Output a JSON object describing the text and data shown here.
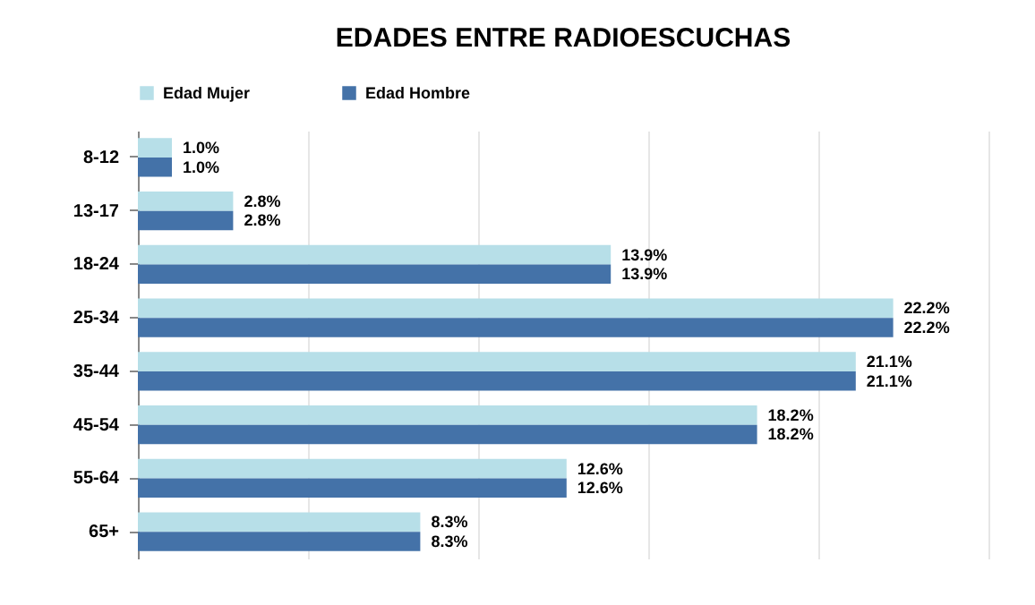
{
  "chart_data": {
    "type": "bar",
    "orientation": "horizontal",
    "title": "EDADES ENTRE RADIOESCUCHAS",
    "categories": [
      "8-12",
      "13-17",
      "18-24",
      "25-34",
      "35-44",
      "45-54",
      "55-64",
      "65+"
    ],
    "series": [
      {
        "name": "Edad Mujer",
        "color": "#b7dfe8",
        "values": [
          1.0,
          2.8,
          13.9,
          22.2,
          21.1,
          18.2,
          12.6,
          8.3
        ],
        "value_labels": [
          "1.0%",
          "2.8%",
          "13.9%",
          "22.2%",
          "21.1%",
          "18.2%",
          "12.6%",
          "8.3%"
        ]
      },
      {
        "name": "Edad Hombre",
        "color": "#4472a8",
        "values": [
          1.0,
          2.8,
          13.9,
          22.2,
          21.1,
          18.2,
          12.6,
          8.3
        ],
        "value_labels": [
          "1.0%",
          "2.8%",
          "13.9%",
          "22.2%",
          "21.1%",
          "18.2%",
          "12.6%",
          "8.3%"
        ]
      }
    ],
    "xlim": [
      0,
      25
    ],
    "xticks": [
      {
        "value": 0,
        "label": null
      },
      {
        "value": 5,
        "label": null
      },
      {
        "value": 10,
        "label": null
      },
      {
        "value": 15,
        "label": null
      },
      {
        "value": 20,
        "label": null
      },
      {
        "value": 25,
        "label": null
      }
    ],
    "grid": "x",
    "legend": "top",
    "tick_labels": "y"
  }
}
